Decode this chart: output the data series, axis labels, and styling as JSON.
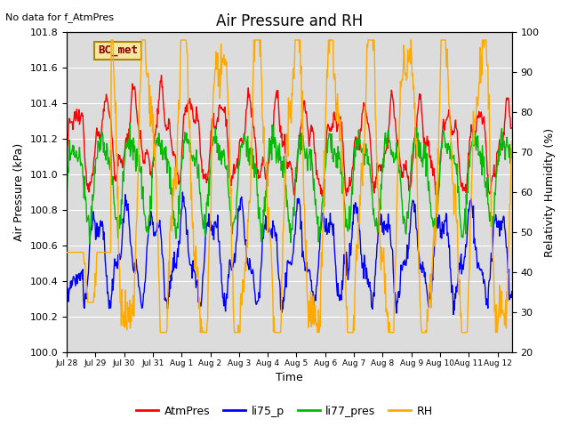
{
  "title": "Air Pressure and RH",
  "top_left_text": "No data for f_AtmPres",
  "box_label": "BC_met",
  "ylabel_left": "Air Pressure (kPa)",
  "ylabel_right": "Relativity Humidity (%)",
  "xlabel": "Time",
  "ylim_left": [
    100.0,
    101.8
  ],
  "ylim_right": [
    20,
    100
  ],
  "yticks_left": [
    100.0,
    100.2,
    100.4,
    100.6,
    100.8,
    101.0,
    101.2,
    101.4,
    101.6,
    101.8
  ],
  "yticks_right": [
    20,
    30,
    40,
    50,
    60,
    70,
    80,
    90,
    100
  ],
  "x_tick_labels": [
    "Jul 28",
    "Jul 29",
    "Jul 30",
    "Jul 31",
    "Aug 1",
    "Aug 2",
    "Aug 3",
    "Aug 4",
    "Aug 5",
    "Aug 6",
    "Aug 7",
    "Aug 8",
    "Aug 9",
    "Aug 10",
    "Aug 11",
    "Aug 12"
  ],
  "colors": {
    "AtmPres": "#ff0000",
    "li75_p": "#0000ff",
    "li77_pres": "#00bb00",
    "RH": "#ffaa00"
  },
  "background_color": "#dcdcdc",
  "grid_color": "#ffffff",
  "title_fontsize": 12,
  "axis_label_fontsize": 9,
  "tick_fontsize": 8,
  "linewidth": 1.0,
  "legend_fontsize": 9
}
